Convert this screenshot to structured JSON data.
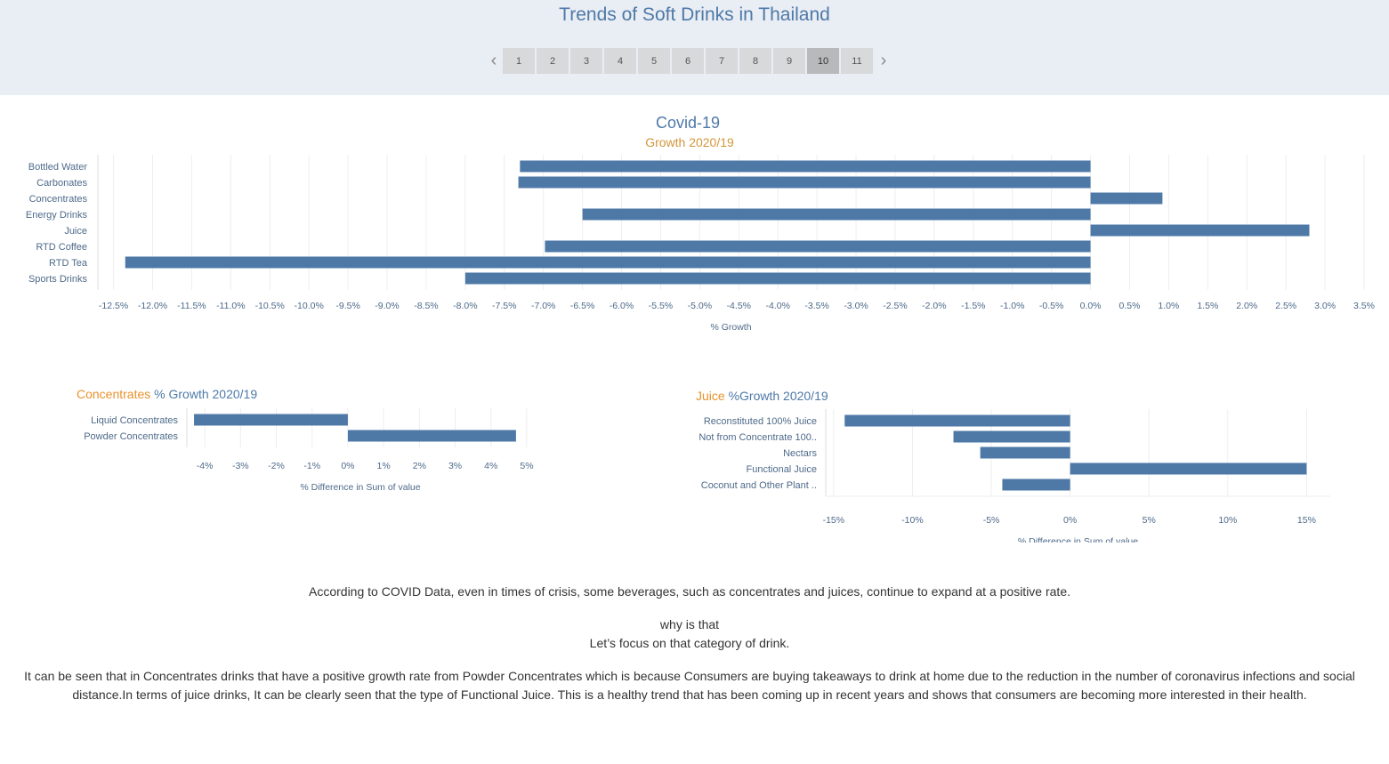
{
  "header": {
    "title": "Trends of Soft Drinks in Thailand",
    "pages": [
      "1",
      "2",
      "3",
      "4",
      "5",
      "6",
      "7",
      "8",
      "9",
      "10",
      "11"
    ],
    "active_page": "10",
    "prev_icon": "chevron-left-icon",
    "next_icon": "chevron-right-icon"
  },
  "colors": {
    "bar": "#4e79a7",
    "title": "#4e79a7",
    "accent": "#e8912b",
    "header_bg": "#e9edf4"
  },
  "chart_data": [
    {
      "type": "bar",
      "orientation": "horizontal",
      "title": "Covid-19",
      "subtitle": "Growth 2020/19",
      "xlabel": "% Growth",
      "categories": [
        "Bottled Water",
        "Carbonates",
        "Concentrates",
        "Energy Drinks",
        "Juice",
        "RTD Coffee",
        "RTD Tea",
        "Sports Drinks"
      ],
      "values": [
        -7.3,
        -7.32,
        0.92,
        -6.5,
        2.8,
        -6.98,
        -12.35,
        -8.0
      ],
      "xlim": [
        -12.7,
        3.5
      ],
      "ticks": [
        -12.5,
        -12.0,
        -11.5,
        -11.0,
        -10.5,
        -10.0,
        -9.5,
        -9.0,
        -8.5,
        -8.0,
        -7.5,
        -7.0,
        -6.5,
        -6.0,
        -5.5,
        -5.0,
        -4.5,
        -4.0,
        -3.5,
        -3.0,
        -2.5,
        -2.0,
        -1.5,
        -1.0,
        -0.5,
        0.0,
        0.5,
        1.0,
        1.5,
        2.0,
        2.5,
        3.0,
        3.5
      ],
      "tick_labels": [
        "-12.5%",
        "-12.0%",
        "-11.5%",
        "-11.0%",
        "-10.5%",
        "-10.0%",
        "-9.5%",
        "-9.0%",
        "-8.5%",
        "-8.0%",
        "-7.5%",
        "-7.0%",
        "-6.5%",
        "-6.0%",
        "-5.5%",
        "-5.0%",
        "-4.5%",
        "-4.0%",
        "-3.5%",
        "-3.0%",
        "-2.5%",
        "-2.0%",
        "-1.5%",
        "-1.0%",
        "-0.5%",
        "0.0%",
        "0.5%",
        "1.0%",
        "1.5%",
        "2.0%",
        "2.5%",
        "3.0%",
        "3.5%"
      ],
      "grid": true
    },
    {
      "type": "bar",
      "orientation": "horizontal",
      "title_highlight": "Concentrates",
      "title_rest": " % Growth 2020/19",
      "xlabel": "% Difference in Sum of value",
      "categories": [
        "Liquid Concentrates",
        "Powder Concentrates"
      ],
      "values": [
        -4.3,
        4.7
      ],
      "xlim": [
        -4.5,
        5.2
      ],
      "ticks": [
        -4,
        -3,
        -2,
        -1,
        0,
        1,
        2,
        3,
        4,
        5
      ],
      "tick_labels": [
        "-4%",
        "-3%",
        "-2%",
        "-1%",
        "0%",
        "1%",
        "2%",
        "3%",
        "4%",
        "5%"
      ],
      "grid": true
    },
    {
      "type": "bar",
      "orientation": "horizontal",
      "title_highlight": "Juice",
      "title_rest": " %Growth 2020/19",
      "xlabel": "% Difference in Sum of value",
      "categories": [
        "Reconstituted 100% Juice",
        "Not from Concentrate 100..",
        "Nectars",
        "Functional Juice",
        "Coconut and Other Plant .."
      ],
      "values": [
        -14.3,
        -7.4,
        -5.7,
        15.0,
        -4.3
      ],
      "xlim": [
        -15.5,
        16.5
      ],
      "ticks": [
        -15,
        -10,
        -5,
        0,
        5,
        10,
        15
      ],
      "tick_labels": [
        "-15%",
        "-10%",
        "-5%",
        "0%",
        "5%",
        "10%",
        "15%"
      ],
      "grid": true
    }
  ],
  "text": {
    "p1": "According to COVID Data, even in times of crisis, some beverages, such as concentrates and juices, continue to expand at a positive rate.",
    "p2a": "why is that",
    "p2b": "Let’s focus on that category of drink.",
    "p3": "It can be seen that in  Concentrates drinks that have a positive growth rate from Powder Concentrates which is because Consumers are buying takeaways to drink at home due to the reduction in the number of coronavirus infections and social distance.In terms of juice drinks, It can be clearly seen that the type of Functional Juice. This is a healthy trend that has been coming up in recent years and shows that consumers are becoming more interested in their health."
  }
}
